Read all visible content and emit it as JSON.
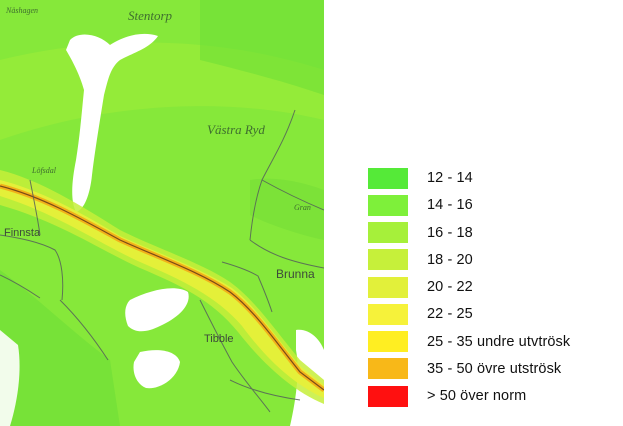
{
  "map": {
    "places": {
      "nashagen": "Näshagen",
      "stentorp": "Stentorp",
      "vastra_ryd": "Västra  Ryd",
      "lofsdal": "Löfsdal",
      "finnsta": "Finnsta",
      "gran": "Gran",
      "brunna": "Brunna",
      "tibble": "Tibble"
    },
    "colors": {
      "background": "#86e83a",
      "zone_light": "#a6ee38",
      "zone_dark": "#66dc37",
      "corridor_outer": "#c8f03a",
      "corridor_inner": "#e8f03a",
      "road_core": "#f2b21a",
      "road_line": "#7a4a18",
      "water": "#ffffff",
      "minor_road": "#55605a"
    }
  },
  "legend": {
    "items": [
      {
        "label": "12 - 14",
        "color": "#55ea38"
      },
      {
        "label": "14 - 16",
        "color": "#7ef03a"
      },
      {
        "label": "16 - 18",
        "color": "#a6f03a"
      },
      {
        "label": "18 - 20",
        "color": "#c6f03a"
      },
      {
        "label": "20 - 22",
        "color": "#e2f03a"
      },
      {
        "label": "22 - 25",
        "color": "#f6f23a"
      },
      {
        "label": "25 - 35 undre utvtrösk",
        "color": "#ffee22"
      },
      {
        "label": "35 - 50 övre utströsk",
        "color": "#f8b818"
      },
      {
        "label": "> 50 över norm",
        "color": "#ff1010"
      }
    ]
  }
}
